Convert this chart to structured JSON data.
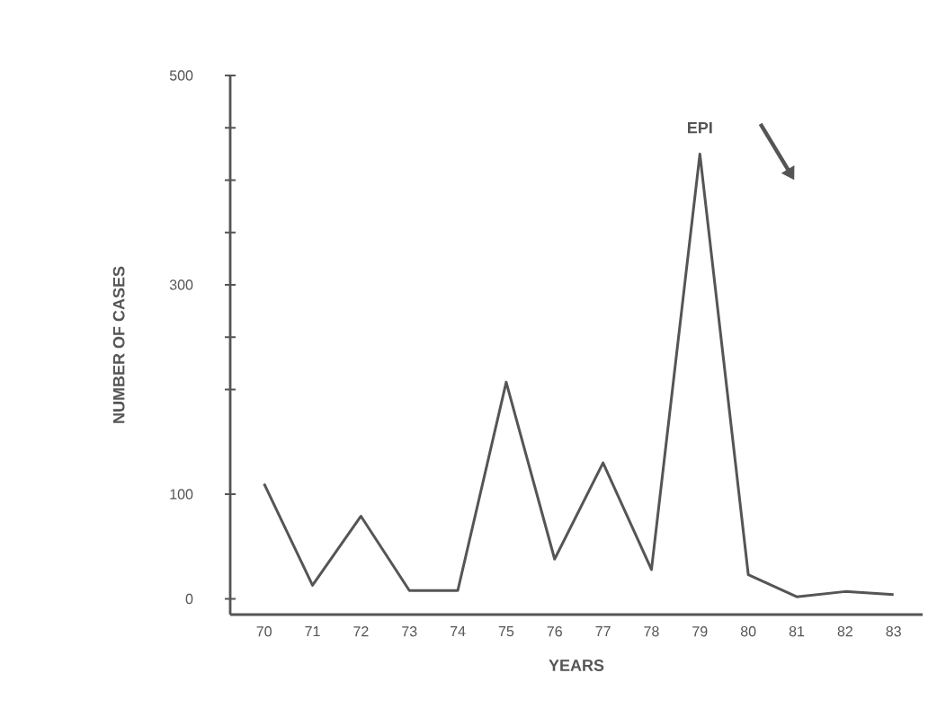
{
  "chart_data": {
    "type": "line",
    "xlabel": "YEARS",
    "ylabel": "NUMBER OF CASES",
    "categories": [
      "70",
      "71",
      "72",
      "73",
      "74",
      "75",
      "76",
      "77",
      "78",
      "79",
      "80",
      "81",
      "82",
      "83"
    ],
    "values": [
      110,
      13,
      79,
      8,
      8,
      207,
      38,
      130,
      28,
      425,
      23,
      2,
      7,
      4
    ],
    "color": "#555555",
    "ylim": [
      -15,
      500
    ],
    "yticks": [
      0,
      100,
      {
        "value": 200,
        "label": null
      },
      {
        "value": 250,
        "label": null
      },
      300,
      {
        "value": 350,
        "label": null
      },
      {
        "value": 400,
        "label": null
      },
      {
        "value": 450,
        "label": null
      },
      500
    ],
    "grid": false,
    "marker": "none",
    "line_style": "solid",
    "annotations": [
      "EPI"
    ]
  }
}
